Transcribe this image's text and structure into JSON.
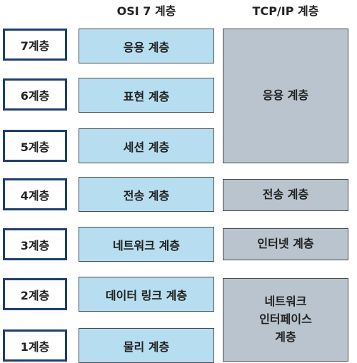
{
  "headers": {
    "osi": "OSI 7 계층",
    "tcpip": "TCP/IP 계층"
  },
  "layer_numbers": [
    "7계층",
    "6계층",
    "5계층",
    "4계층",
    "3계층",
    "2계층",
    "1계층"
  ],
  "osi_layers": [
    "응용 계층",
    "표현 계층",
    "세션 계층",
    "전송 계층",
    "네트워크 계층",
    "데이터 링크 계층",
    "물리 계층"
  ],
  "tcpip_layers": {
    "application": "응용 계층",
    "transport": "전송 계층",
    "internet": "인터넷 계층",
    "network_interface": "네트워크\n인터페이스\n계층"
  },
  "colors": {
    "layer_number_border": "#1e3f6e",
    "osi_fill": "#b7def0",
    "tcpip_fill": "#b9c4ce"
  }
}
